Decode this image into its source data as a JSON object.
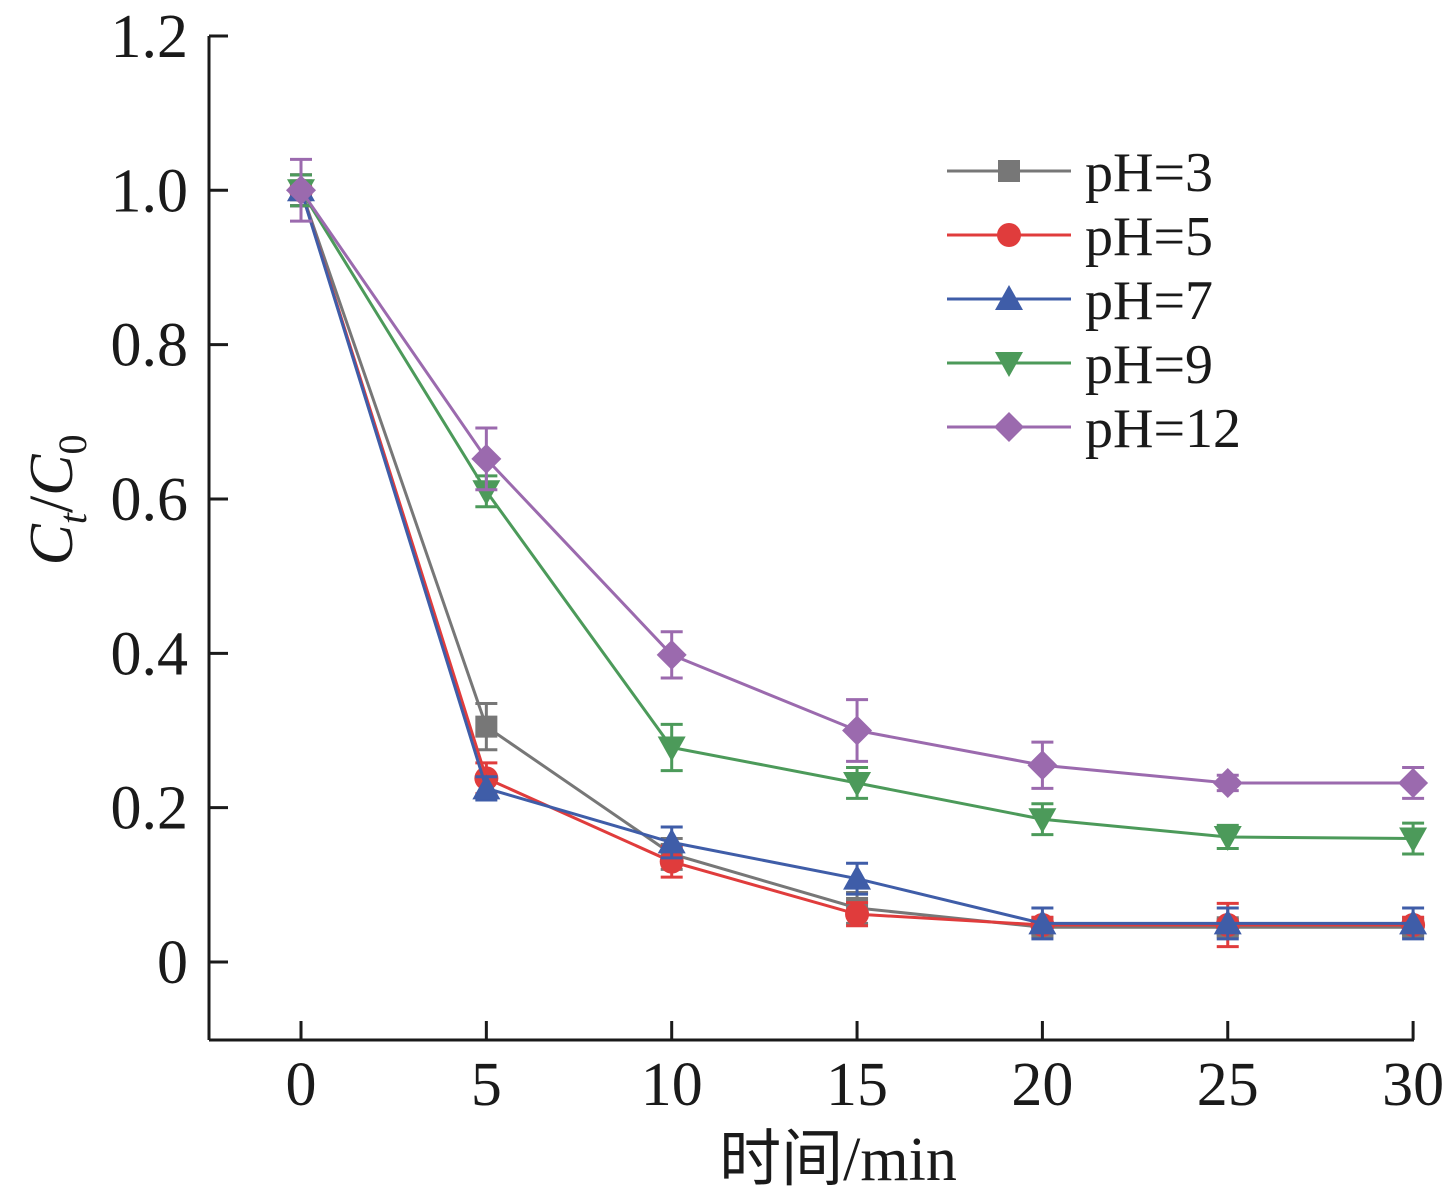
{
  "chart_data": {
    "type": "line",
    "title": "",
    "xlabel": "时间/min",
    "ylabel": {
      "main": "C",
      "sub1": "t",
      "slash": "/",
      "main2": "C",
      "sub2": "0"
    },
    "x": [
      0,
      5,
      10,
      15,
      20,
      25,
      30
    ],
    "xticks": [
      "0",
      "5",
      "10",
      "15",
      "20",
      "25",
      "30"
    ],
    "yticks": [
      "0",
      "0.2",
      "0.4",
      "0.6",
      "0.8",
      "1.0",
      "1.2"
    ],
    "ytick_values": [
      0,
      0.2,
      0.4,
      0.6,
      0.8,
      1.0,
      1.2
    ],
    "xlim": [
      -2.5,
      30
    ],
    "ylim": [
      -0.1,
      1.2
    ],
    "grid": false,
    "legend_position": "top-right",
    "series": [
      {
        "name": "pH=3",
        "color": "#777777",
        "marker": "square",
        "values": [
          1.0,
          0.305,
          0.14,
          0.07,
          0.045,
          0.045,
          0.045
        ],
        "errors": [
          0.02,
          0.03,
          0.02,
          0.02,
          0.01,
          0.01,
          0.01
        ]
      },
      {
        "name": "pH=5",
        "color": "#e03c3c",
        "marker": "circle",
        "values": [
          1.0,
          0.238,
          0.13,
          0.062,
          0.048,
          0.048,
          0.048
        ],
        "errors": [
          0.02,
          0.02,
          0.02,
          0.015,
          0.01,
          0.028,
          0.01
        ]
      },
      {
        "name": "pH=7",
        "color": "#3f5da8",
        "marker": "triangle-up",
        "values": [
          1.0,
          0.225,
          0.155,
          0.108,
          0.05,
          0.05,
          0.05
        ],
        "errors": [
          0.02,
          0.015,
          0.02,
          0.02,
          0.02,
          0.02,
          0.02
        ]
      },
      {
        "name": "pH=9",
        "color": "#4c9a5a",
        "marker": "triangle-down",
        "values": [
          1.0,
          0.61,
          0.278,
          0.232,
          0.185,
          0.162,
          0.16
        ],
        "errors": [
          0.02,
          0.02,
          0.03,
          0.02,
          0.02,
          0.015,
          0.02
        ]
      },
      {
        "name": "pH=12",
        "color": "#9b6aae",
        "marker": "diamond",
        "values": [
          1.0,
          0.652,
          0.398,
          0.3,
          0.255,
          0.232,
          0.232
        ],
        "errors": [
          0.04,
          0.04,
          0.03,
          0.04,
          0.03,
          0.01,
          0.02
        ]
      }
    ]
  }
}
